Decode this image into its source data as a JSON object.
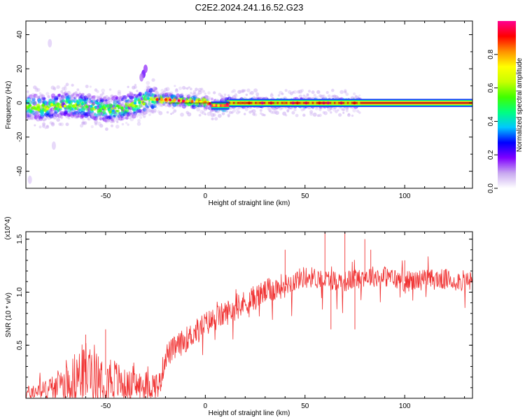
{
  "page": {
    "title": "C2E2.2024.241.16.52.G23"
  },
  "chart_data": [
    {
      "type": "heatmap",
      "xlabel": "Height of straight line (km)",
      "ylabel": "Frequency (Hz)",
      "xlim": [
        -90,
        134
      ],
      "ylim": [
        -50,
        48
      ],
      "xticks": [
        -50,
        0,
        50,
        100
      ],
      "yticks": [
        -40,
        -20,
        0,
        20,
        40
      ],
      "colorbar": {
        "label": "Normalized spectral amplitude",
        "range": [
          0,
          1
        ],
        "ticks": [
          "0.0",
          "0.2",
          "0.4",
          "0.6",
          "0.8"
        ],
        "tick_values": [
          0.0,
          0.2,
          0.4,
          0.6,
          0.8
        ],
        "stops": [
          "#ffffff",
          "#c8a8f0",
          "#8000ff",
          "#0000ff",
          "#00c8ff",
          "#00ff80",
          "#40ff00",
          "#c8ff00",
          "#ffff00",
          "#ff9000",
          "#ff0000",
          "#ff0090"
        ]
      },
      "ridge_center": [
        [
          -90,
          -2
        ],
        [
          -80,
          -3
        ],
        [
          -70,
          -1
        ],
        [
          -60,
          -2
        ],
        [
          -50,
          -4
        ],
        [
          -42,
          -3
        ],
        [
          -35,
          -1
        ],
        [
          -28,
          2
        ],
        [
          -20,
          2
        ],
        [
          -10,
          1
        ],
        [
          0,
          0.5
        ],
        [
          5,
          -1.5
        ],
        [
          10,
          -1.5
        ],
        [
          12,
          0
        ],
        [
          20,
          0
        ],
        [
          50,
          0
        ],
        [
          78,
          0
        ],
        [
          134,
          0
        ]
      ],
      "outliers": [
        {
          "x": -31,
          "y": 17,
          "amp": 0.2
        },
        {
          "x": -30,
          "y": 20,
          "amp": 0.15
        },
        {
          "x": -32,
          "y": 15,
          "amp": 0.12
        },
        {
          "x": -78,
          "y": 35,
          "amp": 0.05
        },
        {
          "x": -88,
          "y": -45,
          "amp": 0.05
        },
        {
          "x": -76,
          "y": -25,
          "amp": 0.05
        }
      ]
    },
    {
      "type": "line",
      "xlabel": "Height of straight line (km)",
      "ylabel": "SNR (10 * v/v)",
      "scale_label": "(x10^4)",
      "xlim": [
        -90,
        134
      ],
      "ylim": [
        0,
        1.57
      ],
      "xticks": [
        -50,
        0,
        50,
        100
      ],
      "yticks": [
        0.5,
        1.0,
        1.5
      ],
      "ytick_labels": [
        "0.5",
        "1.0",
        "1.5"
      ],
      "series": [
        {
          "color": "#f03232",
          "trend": [
            [
              -90,
              0.05
            ],
            [
              -80,
              0.08
            ],
            [
              -70,
              0.15
            ],
            [
              -60,
              0.25
            ],
            [
              -50,
              0.22
            ],
            [
              -40,
              0.12
            ],
            [
              -30,
              0.12
            ],
            [
              -23,
              0.12
            ],
            [
              -20,
              0.4
            ],
            [
              -10,
              0.55
            ],
            [
              0,
              0.7
            ],
            [
              10,
              0.8
            ],
            [
              20,
              0.9
            ],
            [
              30,
              1.0
            ],
            [
              40,
              1.07
            ],
            [
              50,
              1.15
            ],
            [
              60,
              1.12
            ],
            [
              70,
              1.1
            ],
            [
              80,
              1.15
            ],
            [
              90,
              1.15
            ],
            [
              100,
              1.1
            ],
            [
              110,
              1.12
            ],
            [
              120,
              1.12
            ],
            [
              134,
              1.1
            ]
          ],
          "spikes": [
            [
              -50,
              0.65
            ],
            [
              -60,
              0.6
            ],
            [
              40,
              1.4
            ],
            [
              60,
              1.6
            ],
            [
              70,
              1.6
            ],
            [
              80,
              1.5
            ],
            [
              83,
              1.4
            ],
            [
              63,
              0.65
            ],
            [
              75,
              0.65
            ],
            [
              100,
              1.3
            ]
          ]
        }
      ]
    }
  ]
}
